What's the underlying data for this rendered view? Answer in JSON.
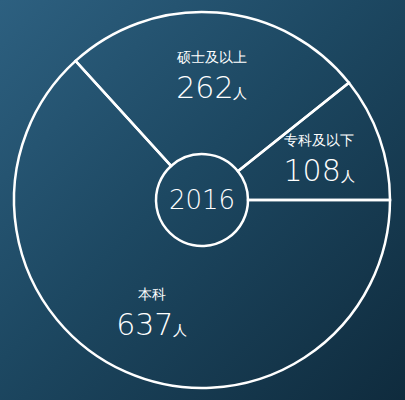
{
  "chart_data": {
    "type": "pie",
    "title": "2016",
    "categories": [
      "专科及以下",
      "硕士及以上",
      "本科"
    ],
    "values": [
      108,
      262,
      637
    ],
    "value_labels": [
      "108人",
      "262人",
      "637人"
    ],
    "data_labels": true
  }
}
